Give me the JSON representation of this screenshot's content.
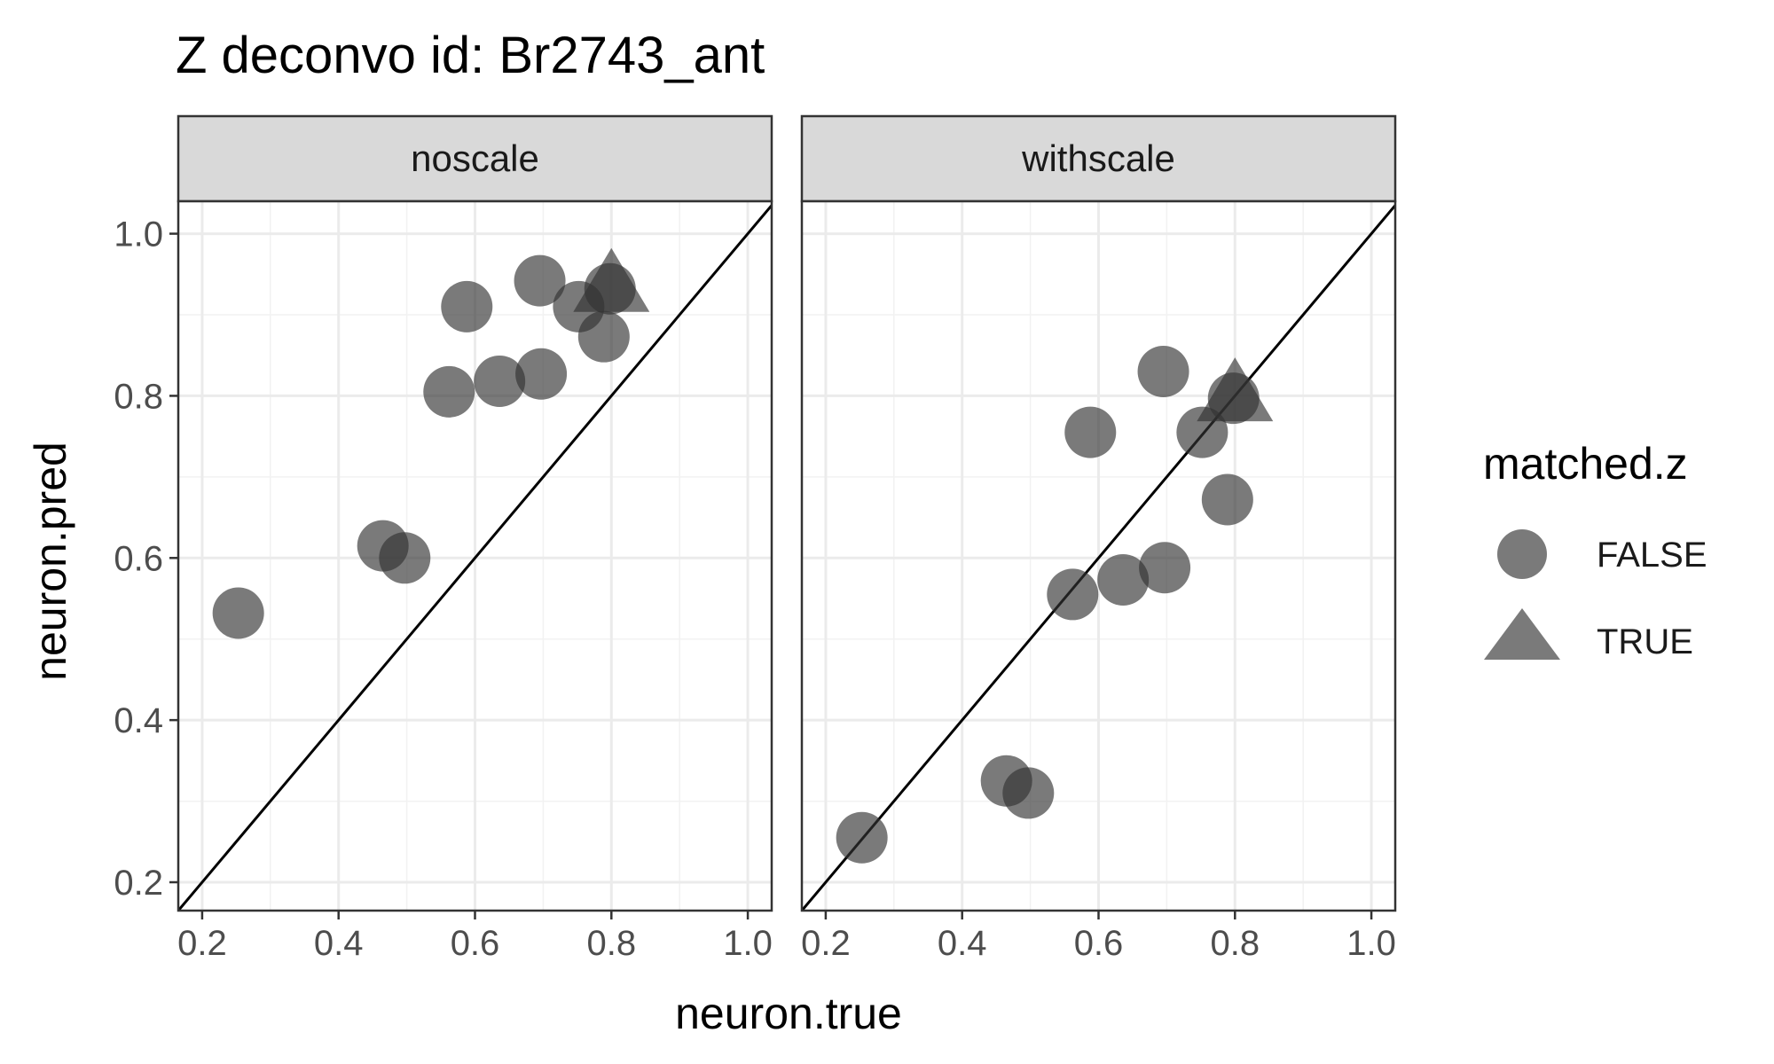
{
  "chart_data": {
    "type": "scatter",
    "title": "Z deconvo id: Br2743_ant",
    "xlabel": "neuron.true",
    "ylabel": "neuron.pred",
    "xlim": [
      0.165,
      1.035
    ],
    "ylim": [
      0.165,
      1.04
    ],
    "x_ticks": [
      "0.2",
      "0.4",
      "0.6",
      "0.8",
      "1.0"
    ],
    "y_ticks": [
      "0.2",
      "0.4",
      "0.6",
      "0.8",
      "1.0"
    ],
    "grid": true,
    "reference_line": "y = x",
    "legend": {
      "title": "matched.z",
      "position": "right",
      "entries": [
        {
          "label": "FALSE",
          "shape": "circle"
        },
        {
          "label": "TRUE",
          "shape": "triangle"
        }
      ]
    },
    "colors": {
      "point": "#333333",
      "point_opacity": 0.65,
      "strip_bg": "#d9d9d9",
      "grid": "#ebebeb"
    },
    "panels": [
      {
        "label": "noscale",
        "points": [
          {
            "x": 0.253,
            "y": 0.532,
            "matched": false
          },
          {
            "x": 0.465,
            "y": 0.615,
            "matched": false
          },
          {
            "x": 0.497,
            "y": 0.6,
            "matched": false
          },
          {
            "x": 0.562,
            "y": 0.805,
            "matched": false
          },
          {
            "x": 0.588,
            "y": 0.91,
            "matched": false
          },
          {
            "x": 0.636,
            "y": 0.818,
            "matched": false
          },
          {
            "x": 0.695,
            "y": 0.942,
            "matched": false
          },
          {
            "x": 0.697,
            "y": 0.827,
            "matched": false
          },
          {
            "x": 0.752,
            "y": 0.91,
            "matched": false
          },
          {
            "x": 0.789,
            "y": 0.873,
            "matched": false
          },
          {
            "x": 0.798,
            "y": 0.932,
            "matched": false
          },
          {
            "x": 0.8,
            "y": 0.932,
            "matched": true
          }
        ]
      },
      {
        "label": "withscale",
        "points": [
          {
            "x": 0.253,
            "y": 0.255,
            "matched": false
          },
          {
            "x": 0.465,
            "y": 0.325,
            "matched": false
          },
          {
            "x": 0.497,
            "y": 0.31,
            "matched": false
          },
          {
            "x": 0.562,
            "y": 0.555,
            "matched": false
          },
          {
            "x": 0.588,
            "y": 0.755,
            "matched": false
          },
          {
            "x": 0.636,
            "y": 0.573,
            "matched": false
          },
          {
            "x": 0.695,
            "y": 0.83,
            "matched": false
          },
          {
            "x": 0.697,
            "y": 0.588,
            "matched": false
          },
          {
            "x": 0.752,
            "y": 0.755,
            "matched": false
          },
          {
            "x": 0.789,
            "y": 0.672,
            "matched": false
          },
          {
            "x": 0.798,
            "y": 0.797,
            "matched": false
          },
          {
            "x": 0.8,
            "y": 0.797,
            "matched": true
          }
        ]
      }
    ]
  }
}
